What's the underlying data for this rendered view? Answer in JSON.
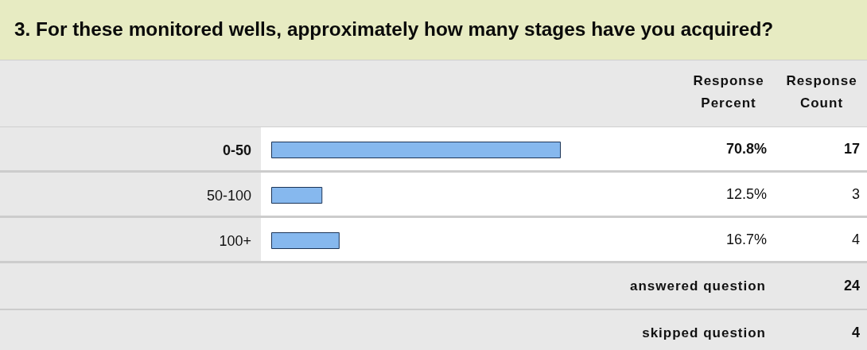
{
  "chart_data": {
    "type": "bar",
    "orientation": "horizontal",
    "title": "3. For these monitored wells, approximately how many stages have you acquired?",
    "categories": [
      "0-50",
      "50-100",
      "100+"
    ],
    "values": [
      70.8,
      12.5,
      16.7
    ],
    "value_labels": [
      "70.8%",
      "12.5%",
      "16.7%"
    ],
    "color": "#86b8ee",
    "tick_labels": "y",
    "annotations": [
      "Response Percent",
      "Response Count",
      "17",
      "3",
      "4",
      "answered question",
      "24",
      "skipped question",
      "4"
    ]
  }
}
